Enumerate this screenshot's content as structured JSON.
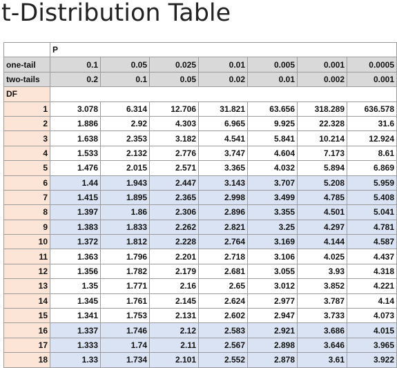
{
  "title": "t-Distribution Table",
  "header": {
    "p_label": "P",
    "one_tail_label": "one-tail",
    "two_tails_label": "two-tails",
    "df_label": "DF",
    "one_tail": [
      "0.1",
      "0.05",
      "0.025",
      "0.01",
      "0.005",
      "0.001",
      "0.0005"
    ],
    "two_tails": [
      "0.2",
      "0.1",
      "0.05",
      "0.02",
      "0.01",
      "0.002",
      "0.001"
    ]
  },
  "rows": [
    {
      "df": "1",
      "values": [
        "3.078",
        "6.314",
        "12.706",
        "31.821",
        "63.656",
        "318.289",
        "636.578"
      ]
    },
    {
      "df": "2",
      "values": [
        "1.886",
        "2.92",
        "4.303",
        "6.965",
        "9.925",
        "22.328",
        "31.6"
      ]
    },
    {
      "df": "3",
      "values": [
        "1.638",
        "2.353",
        "3.182",
        "4.541",
        "5.841",
        "10.214",
        "12.924"
      ]
    },
    {
      "df": "4",
      "values": [
        "1.533",
        "2.132",
        "2.776",
        "3.747",
        "4.604",
        "7.173",
        "8.61"
      ]
    },
    {
      "df": "5",
      "values": [
        "1.476",
        "2.015",
        "2.571",
        "3.365",
        "4.032",
        "5.894",
        "6.869"
      ]
    },
    {
      "df": "6",
      "values": [
        "1.44",
        "1.943",
        "2.447",
        "3.143",
        "3.707",
        "5.208",
        "5.959"
      ]
    },
    {
      "df": "7",
      "values": [
        "1.415",
        "1.895",
        "2.365",
        "2.998",
        "3.499",
        "4.785",
        "5.408"
      ]
    },
    {
      "df": "8",
      "values": [
        "1.397",
        "1.86",
        "2.306",
        "2.896",
        "3.355",
        "4.501",
        "5.041"
      ]
    },
    {
      "df": "9",
      "values": [
        "1.383",
        "1.833",
        "2.262",
        "2.821",
        "3.25",
        "4.297",
        "4.781"
      ]
    },
    {
      "df": "10",
      "values": [
        "1.372",
        "1.812",
        "2.228",
        "2.764",
        "3.169",
        "4.144",
        "4.587"
      ]
    },
    {
      "df": "11",
      "values": [
        "1.363",
        "1.796",
        "2.201",
        "2.718",
        "3.106",
        "4.025",
        "4.437"
      ]
    },
    {
      "df": "12",
      "values": [
        "1.356",
        "1.782",
        "2.179",
        "2.681",
        "3.055",
        "3.93",
        "4.318"
      ]
    },
    {
      "df": "13",
      "values": [
        "1.35",
        "1.771",
        "2.16",
        "2.65",
        "3.012",
        "3.852",
        "4.221"
      ]
    },
    {
      "df": "14",
      "values": [
        "1.345",
        "1.761",
        "2.145",
        "2.624",
        "2.977",
        "3.787",
        "4.14"
      ]
    },
    {
      "df": "15",
      "values": [
        "1.341",
        "1.753",
        "2.131",
        "2.602",
        "2.947",
        "3.733",
        "4.073"
      ]
    },
    {
      "df": "16",
      "values": [
        "1.337",
        "1.746",
        "2.12",
        "2.583",
        "2.921",
        "3.686",
        "4.015"
      ]
    },
    {
      "df": "17",
      "values": [
        "1.333",
        "1.74",
        "2.11",
        "2.567",
        "2.898",
        "3.646",
        "3.965"
      ]
    },
    {
      "df": "18",
      "values": [
        "1.33",
        "1.734",
        "2.101",
        "2.552",
        "2.878",
        "3.61",
        "3.922"
      ]
    }
  ],
  "colors": {
    "header_grey": "#d9d9d9",
    "df_column_peach": "#fce4d6",
    "band_blue": "#dae3f3",
    "band_white": "#ffffff"
  }
}
